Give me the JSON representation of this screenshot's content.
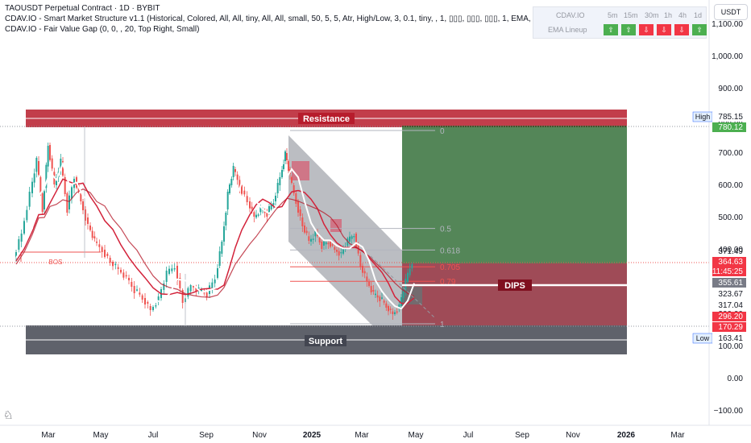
{
  "legend": {
    "title": "TAOUSDT Perpetual Contract · 1D · BYBIT",
    "ind1": "CDAV.IO - Smart Market Structure v1.1 (Historical, Colored, All, All, tiny, All, All, small, 50, 5, 5, Atr, High/Low, 3, 0.1, tiny, , 1, ▯▯▯, ▯▯▯, ▯▯▯, 1, EMA, close, 2)",
    "ind2": "CDAV.IO - Fair Value Gap (0, 0, , 20, Top Right, Small)"
  },
  "panel": {
    "brand": "CDAV.IO",
    "row_label": "EMA Lineup",
    "timeframes": [
      "5m",
      "15m",
      "30m",
      "1h",
      "4h",
      "1d"
    ],
    "signals": [
      {
        "dir": "up",
        "glyph": "⇧"
      },
      {
        "dir": "up",
        "glyph": "⇧"
      },
      {
        "dir": "down",
        "glyph": "⇩"
      },
      {
        "dir": "down",
        "glyph": "⇩"
      },
      {
        "dir": "down",
        "glyph": "⇩"
      },
      {
        "dir": "up",
        "glyph": "⇧"
      }
    ]
  },
  "currency": "USDT",
  "colors": {
    "up": "#26a69a",
    "down": "#ef5350",
    "green_signal": "#4caf50",
    "red_signal": "#f23645",
    "resistance": "#b71c2c",
    "support": "#787b86",
    "white_ema": "#ffffff",
    "red_ema": "#d3223a"
  },
  "chart_data": {
    "type": "candlestick",
    "y_axis": {
      "ticks": [
        "1,100.00",
        "1,000.00",
        "900.00",
        "800.00",
        "700.00",
        "600.00",
        "500.00",
        "400.00",
        "300.00",
        "200.00",
        "100.00",
        "0.00",
        "−100.00"
      ],
      "range": [
        -130,
        1160
      ]
    },
    "x_axis": {
      "ticks": [
        "Mar",
        "May",
        "Jul",
        "Sep",
        "Nov",
        "2025",
        "Mar",
        "May",
        "Jul",
        "Sep",
        "Nov",
        "2026",
        "Mar"
      ]
    },
    "zones": {
      "resistance_label": "Resistance",
      "support_label": "Support",
      "dips_label": "DIPS",
      "bos_label": "BOS"
    },
    "fib_levels": [
      {
        "label": "0",
        "value": 770
      },
      {
        "label": "0.5",
        "value": 466
      },
      {
        "label": "0.618",
        "value": 399
      },
      {
        "label": "0.705",
        "value": 347
      },
      {
        "label": "0.79",
        "value": 302
      },
      {
        "label": "1",
        "value": 170
      }
    ],
    "price_tags": [
      {
        "label": "High",
        "value": "785.15",
        "type": "label",
        "y": 785
      },
      {
        "label": "",
        "value": "780.12",
        "type": "green",
        "y": 762
      },
      {
        "label": "",
        "value": "371.49",
        "type": "plain",
        "y": 371
      },
      {
        "label": "",
        "value": "364.63",
        "type": "red",
        "y": 353
      },
      {
        "label": "",
        "value": "11:45:25",
        "type": "red_time",
        "y": 338
      },
      {
        "label": "",
        "value": "355.61",
        "type": "grey",
        "y": 320
      },
      {
        "label": "",
        "value": "323.67",
        "type": "plain",
        "y": 300
      },
      {
        "label": "",
        "value": "317.04",
        "type": "white",
        "y": 276
      },
      {
        "label": "",
        "value": "296.20",
        "type": "red",
        "y": 248
      },
      {
        "label": "",
        "value": "170.29",
        "type": "red",
        "y": 218
      },
      {
        "label": "Low",
        "value": "163.41",
        "type": "label",
        "y": 190
      }
    ]
  }
}
